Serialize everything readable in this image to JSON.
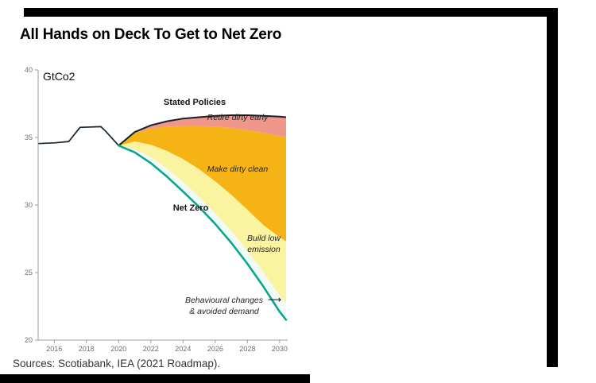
{
  "title": "All Hands on Deck To Get to Net Zero",
  "source": "Sources: Scotiabank, IEA (2021 Roadmap).",
  "labels": {
    "stated_policies": "Stated Policies",
    "retire": "Retire dirty early",
    "make": "Make dirty clean",
    "net_zero": "Net Zero",
    "build": "Build low emission",
    "behavioural_line1": "Behavioural changes",
    "behavioural_line2": "& avoided demand",
    "arrow": "⟶"
  },
  "chart_data": {
    "type": "area",
    "title": "All Hands on Deck To Get to Net Zero",
    "unit_label": "GtCo2",
    "ylabel": "GtCo2",
    "ylim": [
      20,
      40
    ],
    "yticks": [
      20,
      25,
      30,
      35,
      40
    ],
    "xlim": [
      2015,
      2030.5
    ],
    "xticks": [
      2016,
      2018,
      2020,
      2022,
      2024,
      2026,
      2028,
      2030
    ],
    "grid": false,
    "historical": {
      "x": [
        2015,
        2016,
        2016.9,
        2017.6,
        2018.9,
        2019.2,
        2020
      ],
      "y": [
        34.55,
        34.6,
        34.7,
        35.75,
        35.8,
        35.45,
        34.4
      ]
    },
    "projection_x": [
      2020,
      2021,
      2022,
      2023,
      2024,
      2025,
      2026,
      2027,
      2028,
      2029,
      2030,
      2030.4
    ],
    "boundaries": {
      "stated_policies": [
        34.4,
        35.4,
        35.9,
        36.2,
        36.4,
        36.5,
        36.6,
        36.65,
        36.65,
        36.6,
        36.55,
        36.5
      ],
      "retire_bottom": [
        34.4,
        35.35,
        35.65,
        35.8,
        35.85,
        35.85,
        35.8,
        35.7,
        35.55,
        35.35,
        35.1,
        35.0
      ],
      "make_bottom": [
        34.4,
        34.7,
        34.45,
        34.0,
        33.4,
        32.65,
        31.75,
        30.75,
        29.65,
        28.5,
        27.6,
        27.3
      ],
      "build_bottom": [
        34.4,
        34.15,
        33.55,
        32.7,
        31.7,
        30.6,
        29.4,
        28.05,
        26.6,
        25.0,
        23.3,
        22.7
      ],
      "net_zero": [
        34.4,
        33.9,
        33.1,
        32.1,
        31.0,
        29.85,
        28.6,
        27.2,
        25.65,
        23.95,
        22.1,
        21.5
      ]
    },
    "wedges": [
      {
        "id": "retire-dirty-early",
        "label": "Retire dirty early",
        "top": "stated_policies",
        "bottom": "retire_bottom",
        "color": "#f0968a"
      },
      {
        "id": "make-dirty-clean",
        "label": "Make dirty clean",
        "top": "retire_bottom",
        "bottom": "make_bottom",
        "color": "#f6b316"
      },
      {
        "id": "build-low-emission",
        "label": "Build low emission",
        "top": "make_bottom",
        "bottom": "build_bottom",
        "color": "#faf3a0"
      },
      {
        "id": "behavioural-changes-avoided-demand",
        "label": "Behavioural changes & avoided demand",
        "top": "build_bottom",
        "bottom": "net_zero",
        "color": "#f2faf5"
      }
    ],
    "series_labels": [
      "Stated Policies",
      "Net Zero"
    ],
    "colors": {
      "dark_line": "#15222c",
      "net_zero_line": "#0aa78c",
      "axis": "#9aa0a6"
    }
  }
}
